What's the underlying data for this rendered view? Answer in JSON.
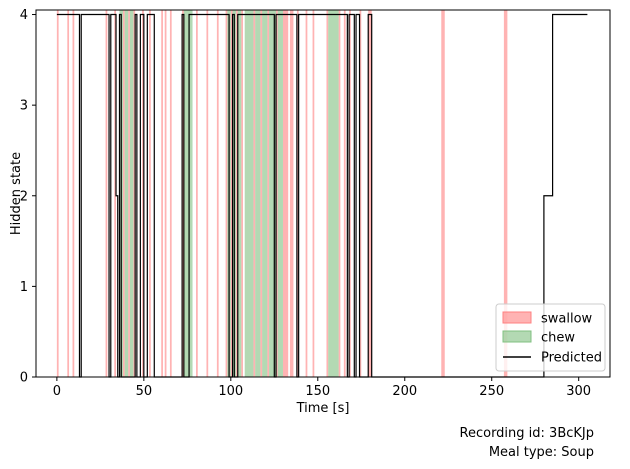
{
  "chart_data": {
    "type": "line",
    "xlabel": "Time [s]",
    "ylabel": "Hidden state",
    "xlim": [
      -12,
      318
    ],
    "ylim": [
      0,
      4.05
    ],
    "xticks": [
      0,
      50,
      100,
      150,
      200,
      250,
      300
    ],
    "yticks": [
      0,
      1,
      2,
      3,
      4
    ],
    "legend_position": "lower-right",
    "series": [
      {
        "name": "swallow",
        "kind": "span",
        "color": "#ff8080",
        "intervals": [
          [
            0,
            1
          ],
          [
            6,
            7
          ],
          [
            9,
            10
          ],
          [
            28,
            29
          ],
          [
            33,
            34
          ],
          [
            38,
            39
          ],
          [
            41,
            42
          ],
          [
            44,
            45
          ],
          [
            49,
            50
          ],
          [
            53,
            54
          ],
          [
            60,
            61
          ],
          [
            62,
            63
          ],
          [
            65,
            66
          ],
          [
            72,
            73
          ],
          [
            80,
            81
          ],
          [
            86,
            87
          ],
          [
            92,
            93
          ],
          [
            97,
            98
          ],
          [
            100,
            101
          ],
          [
            103,
            104
          ],
          [
            106,
            107
          ],
          [
            113,
            114
          ],
          [
            117,
            118
          ],
          [
            121,
            122
          ],
          [
            126,
            127
          ],
          [
            130,
            133
          ],
          [
            134,
            136
          ],
          [
            138,
            139
          ],
          [
            143,
            144
          ],
          [
            147,
            148
          ],
          [
            155,
            156
          ],
          [
            162,
            163
          ],
          [
            165,
            166
          ],
          [
            168,
            169
          ],
          [
            174,
            175
          ],
          [
            179,
            181
          ],
          [
            221,
            223
          ],
          [
            257,
            259
          ]
        ]
      },
      {
        "name": "chew",
        "kind": "span",
        "color": "#80c080",
        "intervals": [
          [
            36,
            38
          ],
          [
            39,
            41
          ],
          [
            42,
            44
          ],
          [
            73,
            78
          ],
          [
            98,
            100
          ],
          [
            101,
            103
          ],
          [
            104,
            106
          ],
          [
            108,
            113
          ],
          [
            114,
            117
          ],
          [
            118,
            121
          ],
          [
            122,
            126
          ],
          [
            127,
            130
          ],
          [
            156,
            162
          ]
        ]
      },
      {
        "name": "Predicted",
        "kind": "step",
        "color": "#000000",
        "x": [
          0,
          13,
          13,
          14,
          14,
          30,
          30,
          31,
          31,
          34,
          34,
          35,
          35,
          36,
          36,
          37,
          37,
          45,
          45,
          46,
          46,
          48,
          48,
          50,
          50,
          52,
          52,
          56,
          56,
          72,
          72,
          73,
          73,
          76,
          76,
          99,
          99,
          101,
          101,
          102,
          102,
          104,
          104,
          125,
          125,
          126,
          126,
          138,
          138,
          139,
          139,
          167,
          167,
          168,
          168,
          171,
          171,
          172,
          172,
          174,
          174,
          179,
          179,
          181,
          181,
          280,
          280,
          285,
          285,
          305
        ],
        "y": [
          4,
          4,
          0,
          0,
          4,
          4,
          0,
          0,
          4,
          4,
          2,
          2,
          0,
          0,
          4,
          4,
          0,
          0,
          4,
          4,
          0,
          0,
          4,
          4,
          0,
          0,
          4,
          4,
          0,
          0,
          4,
          4,
          0,
          0,
          4,
          4,
          0,
          0,
          4,
          4,
          0,
          0,
          4,
          4,
          0,
          0,
          4,
          4,
          0,
          0,
          4,
          4,
          0,
          0,
          4,
          4,
          0,
          0,
          4,
          4,
          0,
          0,
          4,
          4,
          0,
          0,
          2,
          2,
          4,
          4
        ]
      }
    ]
  },
  "footer": {
    "recording_id": "Recording id: 3BcKJp",
    "meal_type": "Meal type: Soup"
  }
}
